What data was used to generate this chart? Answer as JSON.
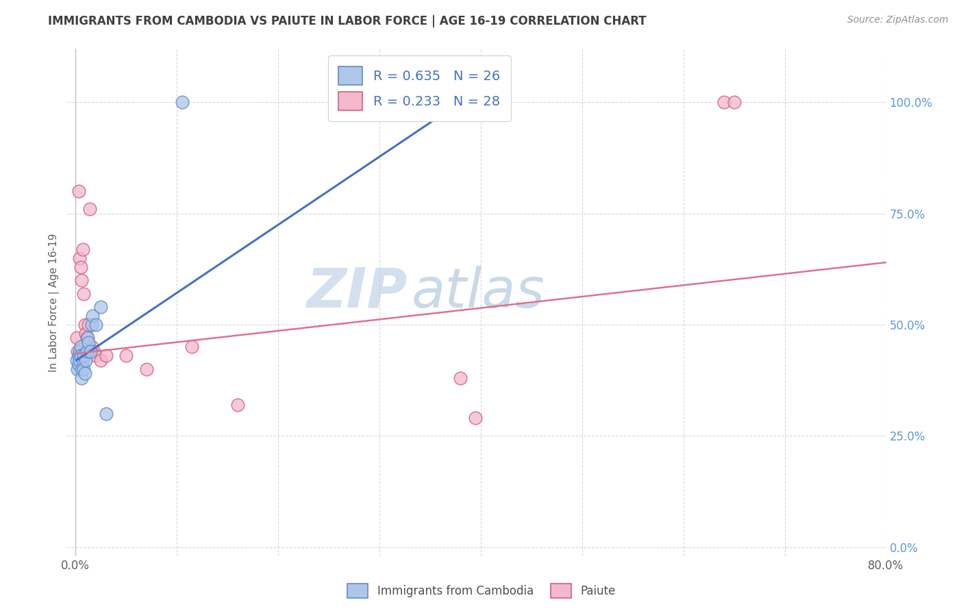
{
  "title": "IMMIGRANTS FROM CAMBODIA VS PAIUTE IN LABOR FORCE | AGE 16-19 CORRELATION CHART",
  "source": "Source: ZipAtlas.com",
  "ylabel": "In Labor Force | Age 16-19",
  "xlim": [
    -0.008,
    0.8
  ],
  "ylim": [
    -0.02,
    1.12
  ],
  "legend_r1": "R = 0.635",
  "legend_n1": "N = 26",
  "legend_r2": "R = 0.233",
  "legend_n2": "N = 28",
  "watermark_zip": "ZIP",
  "watermark_atlas": "atlas",
  "blue_color": "#aec6e8",
  "pink_color": "#f4b8cc",
  "blue_line_color": "#4472c4",
  "pink_line_color": "#e07090",
  "blue_edge_color": "#5b8bd0",
  "pink_edge_color": "#d06080",
  "title_color": "#404040",
  "source_color": "#909090",
  "grid_color": "#d8d8e0",
  "watermark_zip_color": "#b8cce4",
  "watermark_atlas_color": "#a8c0d8",
  "right_axis_color": "#5b9bd5",
  "cambodia_x": [
    0.001,
    0.002,
    0.003,
    0.003,
    0.004,
    0.004,
    0.005,
    0.005,
    0.006,
    0.006,
    0.007,
    0.008,
    0.008,
    0.009,
    0.01,
    0.011,
    0.012,
    0.013,
    0.015,
    0.016,
    0.017,
    0.02,
    0.025,
    0.03,
    0.105,
    0.38
  ],
  "cambodia_y": [
    0.42,
    0.4,
    0.43,
    0.41,
    0.44,
    0.42,
    0.45,
    0.43,
    0.4,
    0.38,
    0.42,
    0.43,
    0.4,
    0.39,
    0.42,
    0.44,
    0.47,
    0.46,
    0.44,
    0.5,
    0.52,
    0.5,
    0.54,
    0.3,
    1.0,
    1.0
  ],
  "paiute_x": [
    0.001,
    0.002,
    0.003,
    0.004,
    0.005,
    0.006,
    0.007,
    0.008,
    0.009,
    0.01,
    0.011,
    0.012,
    0.013,
    0.014,
    0.015,
    0.016,
    0.018,
    0.02,
    0.025,
    0.03,
    0.05,
    0.07,
    0.115,
    0.16,
    0.38,
    0.395,
    0.64,
    0.65
  ],
  "paiute_y": [
    0.47,
    0.44,
    0.8,
    0.65,
    0.63,
    0.6,
    0.67,
    0.57,
    0.5,
    0.48,
    0.47,
    0.45,
    0.5,
    0.76,
    0.44,
    0.45,
    0.44,
    0.43,
    0.42,
    0.43,
    0.43,
    0.4,
    0.45,
    0.32,
    0.38,
    0.29,
    1.0,
    1.0
  ],
  "blue_line_x": [
    0.001,
    0.38
  ],
  "blue_line_y": [
    0.42,
    1.0
  ],
  "pink_line_x": [
    0.0,
    0.8
  ],
  "pink_line_y": [
    0.435,
    0.64
  ]
}
